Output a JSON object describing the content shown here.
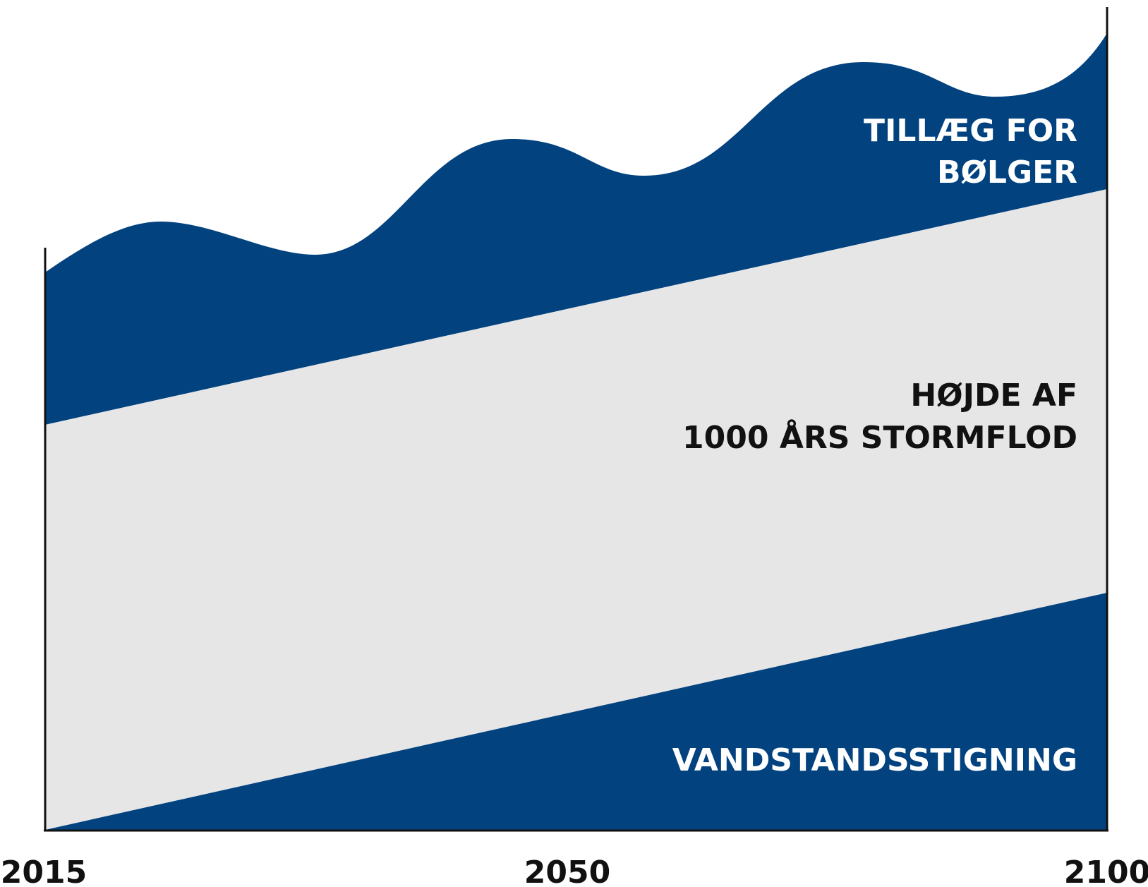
{
  "layers": {
    "waves": {
      "lines": [
        "TILLÆG FOR",
        "BØLGER"
      ]
    },
    "storm_surge": {
      "lines": [
        "HØJDE AF",
        "1000 ÅRS STORMFLOD"
      ]
    },
    "sea_level": {
      "lines": [
        "VANDSTANDSSTIGNING"
      ]
    }
  },
  "x_axis": {
    "ticks": [
      "2015",
      "2050",
      "2100"
    ]
  }
}
